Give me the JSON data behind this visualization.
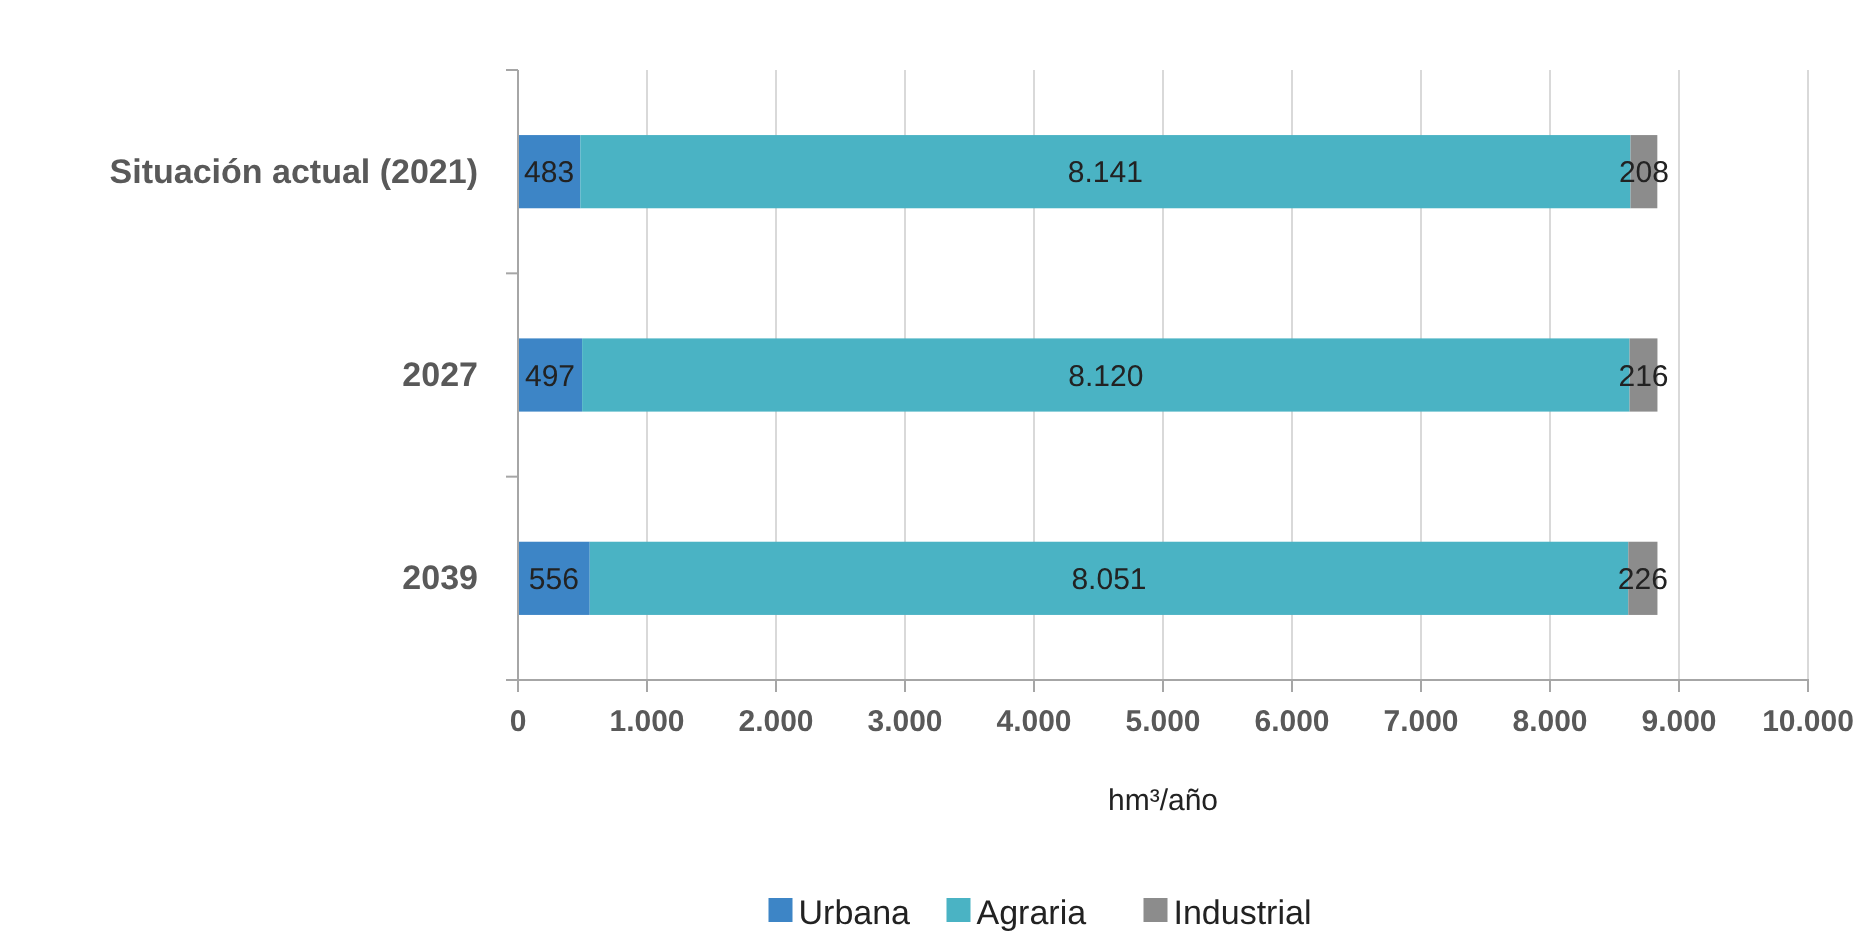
{
  "chart_data": {
    "type": "bar",
    "orientation": "horizontal",
    "stacked": true,
    "xlabel": "hm³/año",
    "categories": [
      "Situación actual (2021)",
      "2027",
      "2039"
    ],
    "series": [
      {
        "name": "Urbana",
        "color": "#3d85c6",
        "values": [
          483,
          497,
          556
        ],
        "value_labels": [
          "483",
          "497",
          "556"
        ]
      },
      {
        "name": "Agraria",
        "color": "#4ab3c4",
        "values": [
          8141,
          8120,
          8051
        ],
        "value_labels": [
          "8.141",
          "8.120",
          "8.051"
        ]
      },
      {
        "name": "Industrial",
        "color": "#8c8c8c",
        "values": [
          208,
          216,
          226
        ],
        "value_labels": [
          "208",
          "216",
          "226"
        ]
      }
    ],
    "xlim": [
      0,
      10000
    ],
    "xticks": [
      {
        "value": 0,
        "label": "0"
      },
      {
        "value": 1000,
        "label": "1.000"
      },
      {
        "value": 2000,
        "label": "2.000"
      },
      {
        "value": 3000,
        "label": "3.000"
      },
      {
        "value": 4000,
        "label": "4.000"
      },
      {
        "value": 5000,
        "label": "5.000"
      },
      {
        "value": 6000,
        "label": "6.000"
      },
      {
        "value": 7000,
        "label": "7.000"
      },
      {
        "value": 8000,
        "label": "8.000"
      },
      {
        "value": 9000,
        "label": "9.000"
      },
      {
        "value": 10000,
        "label": "10.000"
      }
    ],
    "grid": "x",
    "legend": "bottom"
  }
}
